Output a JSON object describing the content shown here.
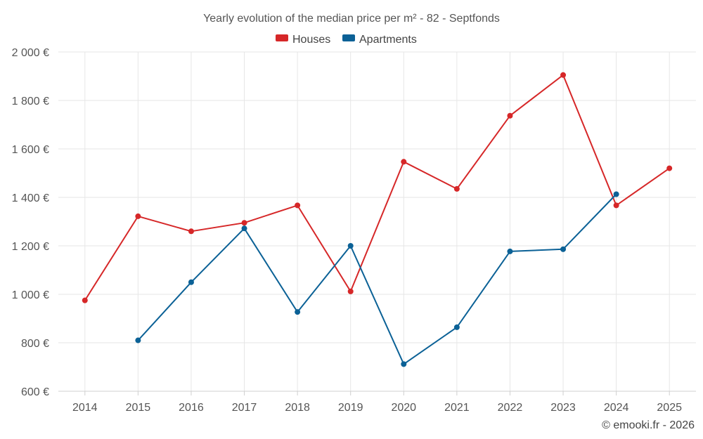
{
  "chart_data": {
    "type": "line",
    "title": "Yearly evolution of the median price per m² - 82 - Septfonds",
    "categories": [
      "2014",
      "2015",
      "2016",
      "2017",
      "2018",
      "2019",
      "2020",
      "2021",
      "2022",
      "2023",
      "2024",
      "2025"
    ],
    "series": [
      {
        "name": "Houses",
        "color": "#d62728",
        "values": [
          975,
          1322,
          1260,
          1295,
          1367,
          1012,
          1547,
          1435,
          1737,
          1905,
          1367,
          1520
        ]
      },
      {
        "name": "Apartments",
        "color": "#0b6196",
        "values": [
          null,
          810,
          1050,
          1272,
          927,
          1200,
          712,
          864,
          1177,
          1186,
          1413,
          null
        ]
      }
    ],
    "ylim": [
      600,
      2000
    ],
    "yticks": [
      600,
      800,
      1000,
      1200,
      1400,
      1600,
      1800,
      2000
    ],
    "ytick_labels": [
      "600 €",
      "800 €",
      "1 000 €",
      "1 200 €",
      "1 400 €",
      "1 600 €",
      "1 800 €",
      "2 000 €"
    ],
    "xlabel": "",
    "ylabel": "",
    "grid": true,
    "legend_position": "top-center"
  },
  "credit": "© emooki.fr - 2026"
}
